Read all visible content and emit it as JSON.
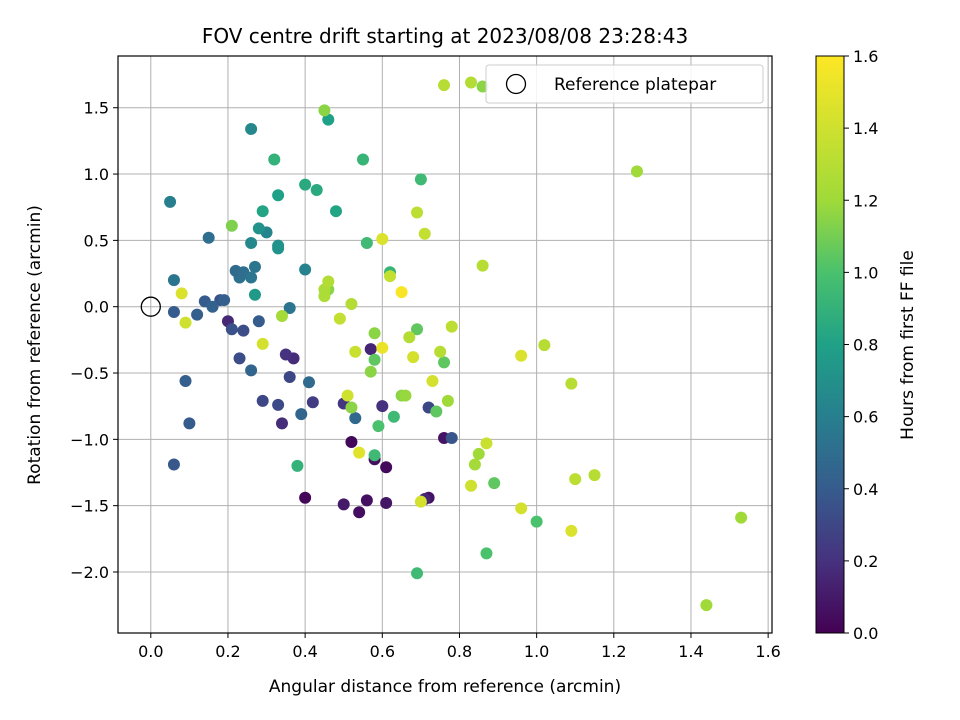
{
  "chart_data": {
    "type": "scatter",
    "title": "FOV centre drift starting at 2023/08/08 23:28:43",
    "xlabel": "Angular distance from reference (arcmin)",
    "ylabel": "Rotation from reference (arcmin)",
    "xlim": [
      -0.085,
      1.61
    ],
    "ylim": [
      -2.46,
      1.89
    ],
    "xticks": [
      0.0,
      0.2,
      0.4,
      0.6,
      0.8,
      1.0,
      1.2,
      1.4,
      1.6
    ],
    "xtick_labels": [
      "0.0",
      "0.2",
      "0.4",
      "0.6",
      "0.8",
      "1.0",
      "1.2",
      "1.4",
      "1.6"
    ],
    "yticks": [
      -2.0,
      -1.5,
      -1.0,
      -0.5,
      0.0,
      0.5,
      1.0,
      1.5
    ],
    "ytick_labels": [
      "−2.0",
      "−1.5",
      "−1.0",
      "−0.5",
      "0.0",
      "0.5",
      "1.0",
      "1.5"
    ],
    "grid": true,
    "legend": {
      "placement": "top-right",
      "entries": [
        {
          "label": "Reference platepar",
          "marker": "open-circle"
        }
      ]
    },
    "reference_point": {
      "x": 0.0,
      "y": 0.0
    },
    "colorbar": {
      "label": "Hours from first FF file",
      "colormap": "viridis",
      "range": [
        0.0,
        1.6
      ],
      "ticks": [
        0.0,
        0.2,
        0.4,
        0.6,
        0.8,
        1.0,
        1.2,
        1.4,
        1.6
      ],
      "tick_labels": [
        "0.0",
        "0.2",
        "0.4",
        "0.6",
        "0.8",
        "1.0",
        "1.2",
        "1.4",
        "1.6"
      ]
    },
    "points": [
      {
        "x": 0.4,
        "y": -1.44,
        "c": 0.02
      },
      {
        "x": 0.52,
        "y": -1.02,
        "c": 0.03
      },
      {
        "x": 0.54,
        "y": -1.55,
        "c": 0.05
      },
      {
        "x": 0.56,
        "y": -1.46,
        "c": 0.06
      },
      {
        "x": 0.61,
        "y": -1.21,
        "c": 0.04
      },
      {
        "x": 0.61,
        "y": -1.48,
        "c": 0.08
      },
      {
        "x": 0.58,
        "y": -1.15,
        "c": 0.05
      },
      {
        "x": 0.5,
        "y": -1.49,
        "c": 0.1
      },
      {
        "x": 0.72,
        "y": -1.44,
        "c": 0.07
      },
      {
        "x": 0.71,
        "y": -1.45,
        "c": 0.15
      },
      {
        "x": 0.76,
        "y": -0.99,
        "c": 0.08
      },
      {
        "x": 0.2,
        "y": -0.11,
        "c": 0.16
      },
      {
        "x": 0.37,
        "y": -0.39,
        "c": 0.18
      },
      {
        "x": 0.35,
        "y": -0.36,
        "c": 0.2
      },
      {
        "x": 0.57,
        "y": -0.32,
        "c": 0.15
      },
      {
        "x": 0.34,
        "y": -0.88,
        "c": 0.18
      },
      {
        "x": 0.5,
        "y": -0.73,
        "c": 0.22
      },
      {
        "x": 0.6,
        "y": -0.75,
        "c": 0.2
      },
      {
        "x": 0.42,
        "y": -0.72,
        "c": 0.25
      },
      {
        "x": 0.29,
        "y": -0.71,
        "c": 0.3
      },
      {
        "x": 0.33,
        "y": -0.74,
        "c": 0.32
      },
      {
        "x": 0.36,
        "y": -0.53,
        "c": 0.3
      },
      {
        "x": 0.23,
        "y": -0.39,
        "c": 0.33
      },
      {
        "x": 0.21,
        "y": -0.17,
        "c": 0.35
      },
      {
        "x": 0.24,
        "y": -0.18,
        "c": 0.33
      },
      {
        "x": 0.72,
        "y": -0.76,
        "c": 0.3
      },
      {
        "x": 0.78,
        "y": -0.99,
        "c": 0.37
      },
      {
        "x": 0.06,
        "y": -1.19,
        "c": 0.38
      },
      {
        "x": 0.1,
        "y": -0.88,
        "c": 0.4
      },
      {
        "x": 0.09,
        "y": -0.56,
        "c": 0.42
      },
      {
        "x": 0.06,
        "y": -0.04,
        "c": 0.4
      },
      {
        "x": 0.12,
        "y": -0.06,
        "c": 0.42
      },
      {
        "x": 0.14,
        "y": 0.04,
        "c": 0.4
      },
      {
        "x": 0.18,
        "y": 0.05,
        "c": 0.36
      },
      {
        "x": 0.16,
        "y": 0.0,
        "c": 0.44
      },
      {
        "x": 0.19,
        "y": 0.05,
        "c": 0.42
      },
      {
        "x": 0.28,
        "y": -0.11,
        "c": 0.4
      },
      {
        "x": 0.26,
        "y": -0.48,
        "c": 0.45
      },
      {
        "x": 0.41,
        "y": -0.57,
        "c": 0.48
      },
      {
        "x": 0.39,
        "y": -0.81,
        "c": 0.45
      },
      {
        "x": 0.53,
        "y": -0.84,
        "c": 0.47
      },
      {
        "x": 0.15,
        "y": 0.52,
        "c": 0.5
      },
      {
        "x": 0.23,
        "y": 0.22,
        "c": 0.52
      },
      {
        "x": 0.22,
        "y": 0.27,
        "c": 0.48
      },
      {
        "x": 0.24,
        "y": 0.26,
        "c": 0.5
      },
      {
        "x": 0.26,
        "y": 0.22,
        "c": 0.55
      },
      {
        "x": 0.27,
        "y": 0.3,
        "c": 0.55
      },
      {
        "x": 0.36,
        "y": -0.01,
        "c": 0.55
      },
      {
        "x": 0.06,
        "y": 0.2,
        "c": 0.55
      },
      {
        "x": 0.05,
        "y": 0.79,
        "c": 0.6
      },
      {
        "x": 0.4,
        "y": 0.28,
        "c": 0.62
      },
      {
        "x": 0.3,
        "y": 0.56,
        "c": 0.63
      },
      {
        "x": 0.26,
        "y": 1.34,
        "c": 0.65
      },
      {
        "x": 0.26,
        "y": 0.48,
        "c": 0.65
      },
      {
        "x": 0.33,
        "y": 0.46,
        "c": 0.7
      },
      {
        "x": 0.33,
        "y": 0.44,
        "c": 0.72
      },
      {
        "x": 0.28,
        "y": 0.59,
        "c": 0.72
      },
      {
        "x": 0.27,
        "y": 0.09,
        "c": 0.75
      },
      {
        "x": 0.46,
        "y": 1.41,
        "c": 0.8
      },
      {
        "x": 0.33,
        "y": 0.84,
        "c": 0.8
      },
      {
        "x": 0.29,
        "y": 0.72,
        "c": 0.82
      },
      {
        "x": 0.48,
        "y": 0.72,
        "c": 0.82
      },
      {
        "x": 0.4,
        "y": 0.92,
        "c": 0.85
      },
      {
        "x": 0.43,
        "y": 0.88,
        "c": 0.85
      },
      {
        "x": 0.32,
        "y": 1.11,
        "c": 0.9
      },
      {
        "x": 0.38,
        "y": -1.2,
        "c": 0.9
      },
      {
        "x": 0.55,
        "y": 1.11,
        "c": 0.92
      },
      {
        "x": 0.56,
        "y": 0.48,
        "c": 0.95
      },
      {
        "x": 0.62,
        "y": 0.26,
        "c": 0.92
      },
      {
        "x": 0.69,
        "y": -2.01,
        "c": 0.95
      },
      {
        "x": 0.58,
        "y": -1.12,
        "c": 0.95
      },
      {
        "x": 0.7,
        "y": 0.96,
        "c": 0.95
      },
      {
        "x": 0.63,
        "y": -0.83,
        "c": 0.95
      },
      {
        "x": 0.59,
        "y": -0.9,
        "c": 1.0
      },
      {
        "x": 0.87,
        "y": -1.86,
        "c": 1.0
      },
      {
        "x": 1.0,
        "y": -1.62,
        "c": 1.0
      },
      {
        "x": 0.89,
        "y": -1.33,
        "c": 1.05
      },
      {
        "x": 0.69,
        "y": -0.17,
        "c": 1.05
      },
      {
        "x": 0.74,
        "y": -0.79,
        "c": 1.05
      },
      {
        "x": 0.76,
        "y": -0.42,
        "c": 1.05
      },
      {
        "x": 0.58,
        "y": -0.4,
        "c": 1.05
      },
      {
        "x": 0.21,
        "y": 0.61,
        "c": 1.12
      },
      {
        "x": 0.45,
        "y": 1.48,
        "c": 1.15
      },
      {
        "x": 0.86,
        "y": 1.66,
        "c": 1.15
      },
      {
        "x": 0.46,
        "y": 0.13,
        "c": 1.15
      },
      {
        "x": 0.57,
        "y": -0.49,
        "c": 1.15
      },
      {
        "x": 0.58,
        "y": -0.2,
        "c": 1.15
      },
      {
        "x": 0.52,
        "y": -0.76,
        "c": 1.15
      },
      {
        "x": 0.65,
        "y": -0.67,
        "c": 1.15
      },
      {
        "x": 0.66,
        "y": -0.67,
        "c": 1.18
      },
      {
        "x": 0.77,
        "y": -0.71,
        "c": 1.2
      },
      {
        "x": 0.85,
        "y": -1.11,
        "c": 1.2
      },
      {
        "x": 0.84,
        "y": -1.19,
        "c": 1.22
      },
      {
        "x": 1.26,
        "y": 1.02,
        "c": 1.2
      },
      {
        "x": 1.53,
        "y": -1.59,
        "c": 1.2
      },
      {
        "x": 1.44,
        "y": -2.25,
        "c": 1.2
      },
      {
        "x": 0.34,
        "y": -0.07,
        "c": 1.22
      },
      {
        "x": 0.45,
        "y": 0.08,
        "c": 1.25
      },
      {
        "x": 0.45,
        "y": 0.13,
        "c": 1.25
      },
      {
        "x": 0.46,
        "y": 0.19,
        "c": 1.28
      },
      {
        "x": 0.52,
        "y": 0.02,
        "c": 1.28
      },
      {
        "x": 0.67,
        "y": -0.23,
        "c": 1.28
      },
      {
        "x": 0.75,
        "y": -0.34,
        "c": 1.3
      },
      {
        "x": 0.78,
        "y": -0.15,
        "c": 1.32
      },
      {
        "x": 0.86,
        "y": 0.31,
        "c": 1.3
      },
      {
        "x": 1.02,
        "y": -0.29,
        "c": 1.3
      },
      {
        "x": 1.09,
        "y": -0.58,
        "c": 1.3
      },
      {
        "x": 1.1,
        "y": -1.3,
        "c": 1.32
      },
      {
        "x": 1.15,
        "y": -1.27,
        "c": 1.3
      },
      {
        "x": 0.76,
        "y": 1.67,
        "c": 1.3
      },
      {
        "x": 0.83,
        "y": 1.69,
        "c": 1.28
      },
      {
        "x": 0.69,
        "y": 0.71,
        "c": 1.32
      },
      {
        "x": 0.71,
        "y": 0.55,
        "c": 1.35
      },
      {
        "x": 0.62,
        "y": 0.23,
        "c": 1.35
      },
      {
        "x": 0.49,
        "y": -0.09,
        "c": 1.35
      },
      {
        "x": 0.53,
        "y": -0.34,
        "c": 1.38
      },
      {
        "x": 0.51,
        "y": -0.67,
        "c": 1.4
      },
      {
        "x": 0.73,
        "y": -0.56,
        "c": 1.42
      },
      {
        "x": 0.68,
        "y": -0.38,
        "c": 1.42
      },
      {
        "x": 0.87,
        "y": -1.03,
        "c": 1.38
      },
      {
        "x": 0.83,
        "y": -1.35,
        "c": 1.4
      },
      {
        "x": 0.7,
        "y": -1.47,
        "c": 1.42
      },
      {
        "x": 0.96,
        "y": -1.52,
        "c": 1.42
      },
      {
        "x": 1.09,
        "y": -1.69,
        "c": 1.45
      },
      {
        "x": 0.96,
        "y": -0.37,
        "c": 1.45
      },
      {
        "x": 0.6,
        "y": 0.51,
        "c": 1.45
      },
      {
        "x": 0.29,
        "y": -0.28,
        "c": 1.42
      },
      {
        "x": 0.09,
        "y": -0.12,
        "c": 1.4
      },
      {
        "x": 0.54,
        "y": -1.1,
        "c": 1.48
      },
      {
        "x": 0.08,
        "y": 0.1,
        "c": 1.45
      },
      {
        "x": 0.6,
        "y": -0.31,
        "c": 1.52
      },
      {
        "x": 0.65,
        "y": 0.11,
        "c": 1.58
      }
    ]
  }
}
